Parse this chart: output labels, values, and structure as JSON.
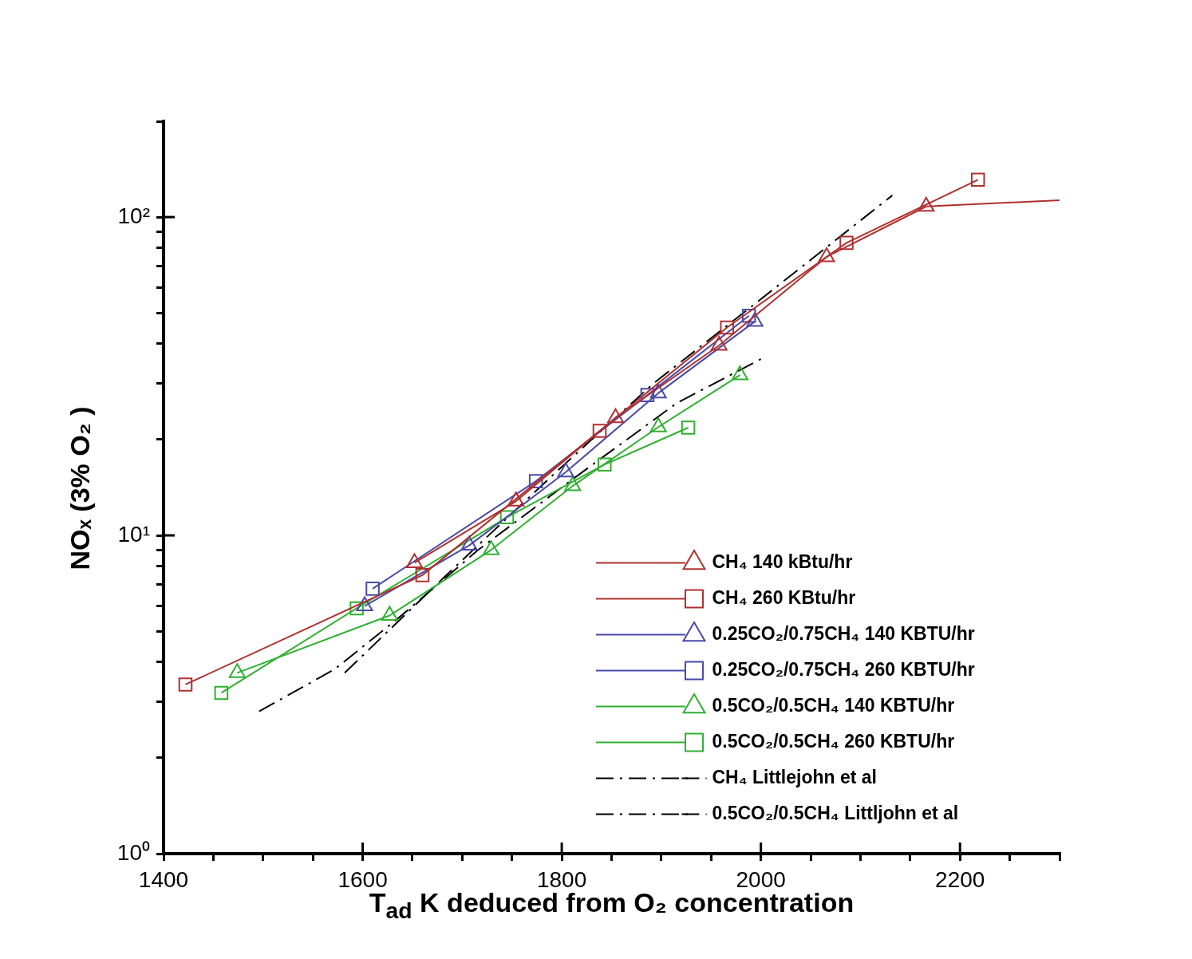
{
  "chart_data": {
    "type": "line",
    "xlabel": "T$_{ad}$ K deduced from O₂ concentration",
    "ylabel": "NOₓ (3% O₂ )",
    "log": "y",
    "grid": false,
    "legend": "bottom right",
    "xlim": [
      1400,
      2300
    ],
    "ylim": [
      1,
      200
    ],
    "xticks": [
      1400,
      {
        "value": 1450,
        "label": null
      },
      {
        "value": 1500,
        "label": null
      },
      {
        "value": 1550,
        "label": null
      },
      1600,
      {
        "value": 1650,
        "label": null
      },
      {
        "value": 1700,
        "label": null
      },
      {
        "value": 1750,
        "label": null
      },
      1800,
      {
        "value": 1850,
        "label": null
      },
      {
        "value": 1900,
        "label": null
      },
      {
        "value": 1950,
        "label": null
      },
      2000,
      {
        "value": 2050,
        "label": null
      },
      {
        "value": 2100,
        "label": null
      },
      {
        "value": 2150,
        "label": null
      },
      2200,
      {
        "value": 2250,
        "label": null
      },
      {
        "value": 2300,
        "label": null
      }
    ],
    "yticks": [
      {
        "value": 1,
        "label": "10⁰"
      },
      {
        "value": 2,
        "label": null
      },
      {
        "value": 3,
        "label": null
      },
      {
        "value": 4,
        "label": null
      },
      {
        "value": 5,
        "label": null
      },
      {
        "value": 6,
        "label": null
      },
      {
        "value": 7,
        "label": null
      },
      {
        "value": 8,
        "label": null
      },
      {
        "value": 9,
        "label": null
      },
      {
        "value": 10,
        "label": "10¹"
      },
      {
        "value": 20,
        "label": null
      },
      {
        "value": 30,
        "label": null
      },
      {
        "value": 40,
        "label": null
      },
      {
        "value": 50,
        "label": null
      },
      {
        "value": 60,
        "label": null
      },
      {
        "value": 70,
        "label": null
      },
      {
        "value": 80,
        "label": null
      },
      {
        "value": 90,
        "label": null
      },
      {
        "value": 100,
        "label": "10²"
      },
      {
        "value": 200,
        "label": null
      }
    ],
    "series": [
      {
        "name": "CH₄ 140 kBtu/hr",
        "color": "#b03030",
        "marker": "triangle",
        "line_style": "solid",
        "x": [
          1652,
          1754,
          1854,
          1958,
          2066,
          2166,
          2300
        ],
        "values": [
          8.2,
          12.8,
          23.4,
          39.5,
          75,
          108,
          113
        ]
      },
      {
        "name": "CH₄ 260 KBtu/hr",
        "color": "#b03030",
        "marker": "square",
        "line_style": "solid",
        "x": [
          1422,
          1660,
          1838,
          1966,
          2086,
          2218
        ],
        "values": [
          3.4,
          7.5,
          21.3,
          45,
          83,
          131
        ]
      },
      {
        "name": "0.25CO₂/0.75CH₄ 140 KBTU/hr",
        "color": "#4a4aa8",
        "marker": "triangle",
        "line_style": "solid",
        "x": [
          1602,
          1707,
          1804,
          1897,
          1994
        ],
        "values": [
          6,
          9.3,
          15.8,
          28,
          47
        ]
      },
      {
        "name": "0.25CO₂/0.75CH₄ 260 KBTU/hr",
        "color": "#4a4aa8",
        "marker": "square",
        "line_style": "solid",
        "x": [
          1610,
          1774,
          1886,
          1988
        ],
        "values": [
          6.8,
          14.8,
          27.6,
          49
        ]
      },
      {
        "name": "0.5CO₂/0.5CH₄ 140 KBTU/hr",
        "color": "#30b030",
        "marker": "triangle",
        "line_style": "solid",
        "x": [
          1474,
          1627,
          1729,
          1811,
          1897,
          1979
        ],
        "values": [
          3.7,
          5.6,
          9,
          14.3,
          21.9,
          31.9
        ]
      },
      {
        "name": "0.5CO₂/0.5CH₄ 260 KBTU/hr",
        "color": "#30b030",
        "marker": "square",
        "line_style": "solid",
        "x": [
          1458,
          1594,
          1745,
          1843,
          1927
        ],
        "values": [
          3.2,
          5.9,
          11.4,
          16.7,
          21.8
        ]
      },
      {
        "name": "CH₄ Littlejohn et al",
        "color": "#000000",
        "marker": "none",
        "line_style": "dashed",
        "x": [
          1582,
          1684,
          1796,
          1892,
          1996,
          2132
        ],
        "values": [
          3.7,
          7.5,
          16,
          30,
          54,
          117
        ]
      },
      {
        "name": "0.5CO₂/0.5CH₄ Littljohn et al",
        "color": "#000000",
        "marker": "none",
        "line_style": "dashed",
        "x": [
          1496,
          1572,
          1636,
          1716,
          1812,
          1916,
          2000
        ],
        "values": [
          2.8,
          3.8,
          5.5,
          9,
          15.1,
          26.1,
          35.8
        ]
      }
    ]
  }
}
